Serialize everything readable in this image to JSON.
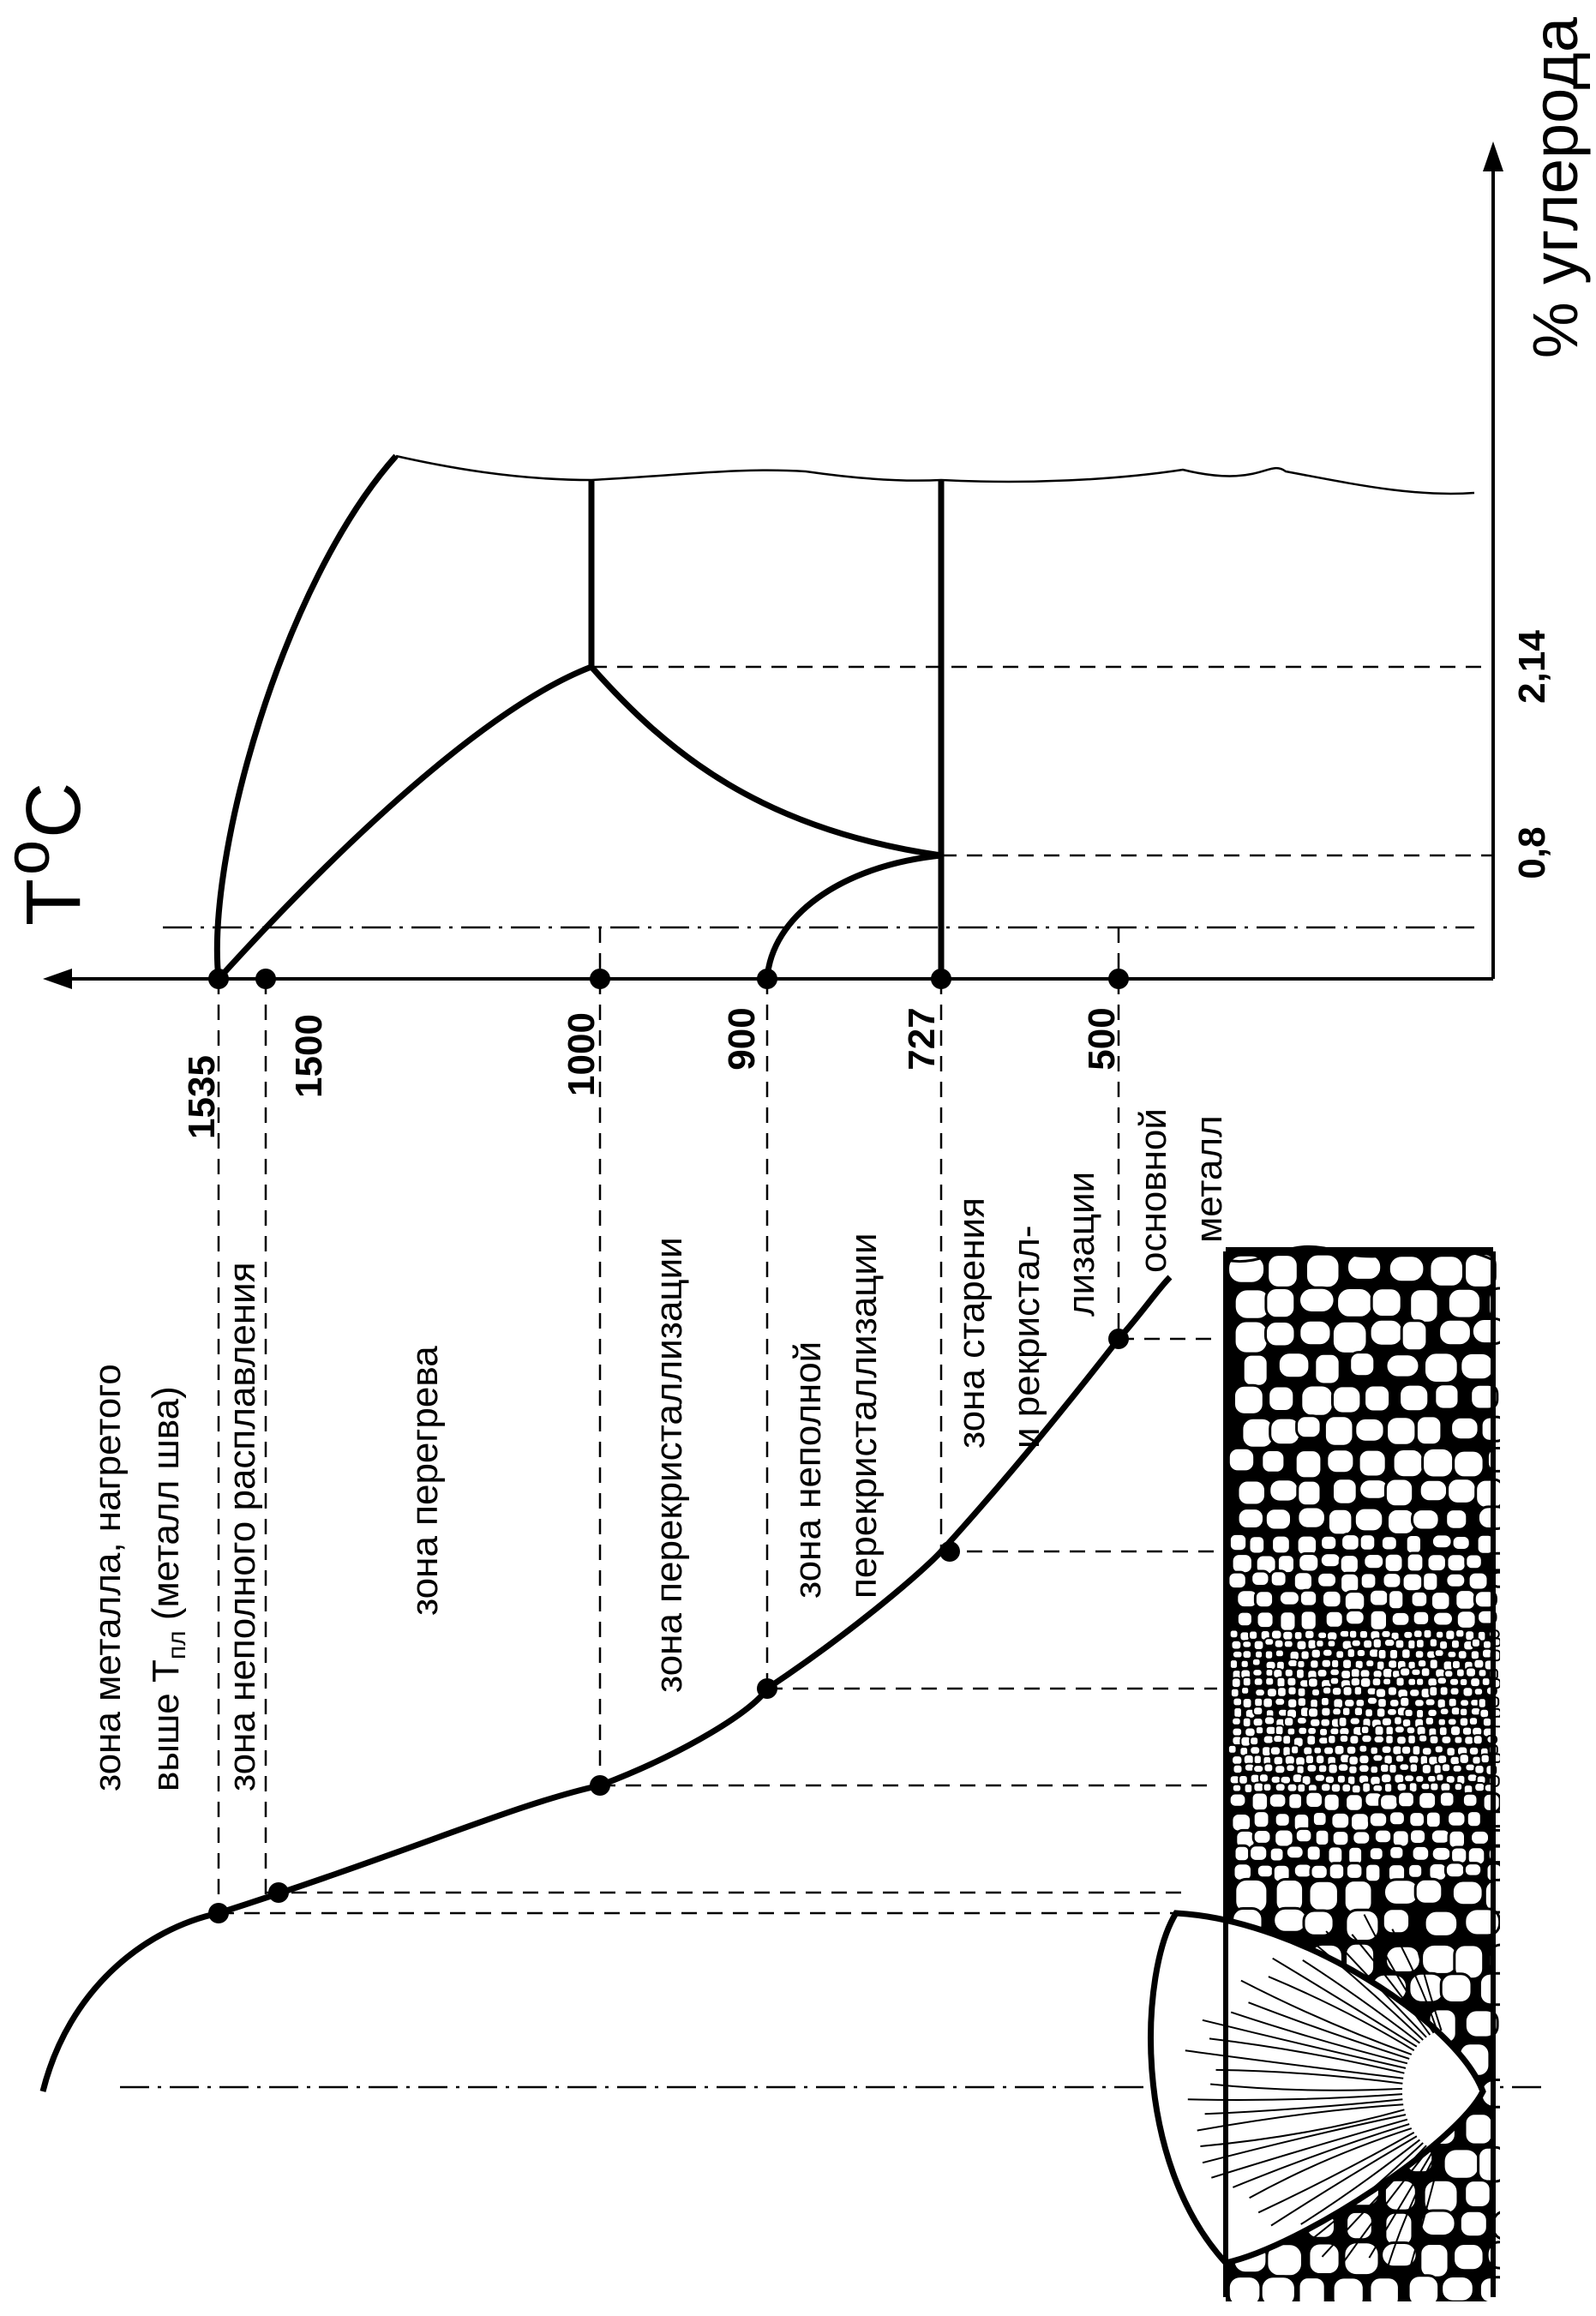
{
  "axes": {
    "temperature_symbol": "T",
    "temperature_degree": "o",
    "temperature_unit": "C",
    "carbon_label": "% углерода"
  },
  "temperatures": [
    "1535",
    "1500",
    "1000",
    "900",
    "727",
    "500"
  ],
  "carbon_ticks": [
    "0,8",
    "2,14"
  ],
  "zones": {
    "melted_line1": "зона металла, нагретого",
    "melted_line2": "выше T",
    "melted_sub": "пл",
    "melted_line2_rest": " (металл шва)",
    "partial_melting": "зона неполного расплавления",
    "overheating": "зона перегрева",
    "recrystallization": "зона перекристаллизации",
    "partial_recryst_line1": "зона неполной",
    "partial_recryst_line2": "перекристаллизации",
    "aging_line1": "зона старения",
    "aging_line2": "и рекристал-",
    "aging_line3": "лизации",
    "base_line1": "основной",
    "base_line2": "металл"
  }
}
